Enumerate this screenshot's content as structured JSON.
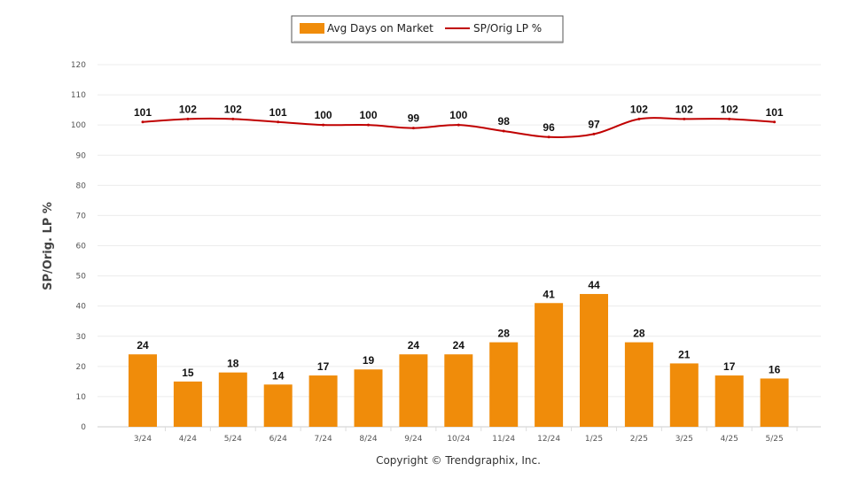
{
  "chart_data": {
    "type": "bar",
    "categories": [
      "3/24",
      "4/24",
      "5/24",
      "6/24",
      "7/24",
      "8/24",
      "9/24",
      "10/24",
      "11/24",
      "12/24",
      "1/25",
      "2/25",
      "3/25",
      "4/25",
      "5/25"
    ],
    "series": [
      {
        "name": "Avg Days on Market",
        "type": "bar",
        "color": "#f08c0a",
        "values": [
          24,
          15,
          18,
          14,
          17,
          19,
          24,
          24,
          28,
          41,
          44,
          28,
          21,
          17,
          16
        ]
      },
      {
        "name": "SP/Orig LP %",
        "type": "line",
        "color": "#c00000",
        "values": [
          101,
          102,
          102,
          101,
          100,
          100,
          99,
          100,
          98,
          96,
          97,
          102,
          102,
          102,
          101
        ]
      }
    ],
    "ylabel": "SP/Orig. LP %",
    "ylim": [
      0,
      120
    ],
    "yticks": [
      0,
      10,
      20,
      30,
      40,
      50,
      60,
      70,
      80,
      90,
      100,
      110,
      120
    ],
    "grid": true,
    "legend_position": "top-center"
  },
  "footer": {
    "copyright": "Copyright © Trendgraphix, Inc."
  }
}
